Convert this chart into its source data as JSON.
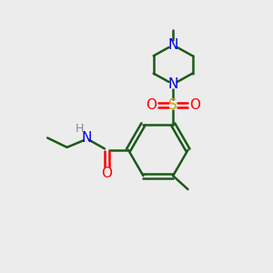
{
  "background_color": "#ececec",
  "atom_colors": {
    "C": "#1a5a1a",
    "N": "#0000ee",
    "O": "#ff0000",
    "S": "#ccaa00",
    "H": "#888888"
  },
  "bond_color": "#1a5a1a",
  "figsize": [
    3.0,
    3.0
  ],
  "dpi": 100
}
